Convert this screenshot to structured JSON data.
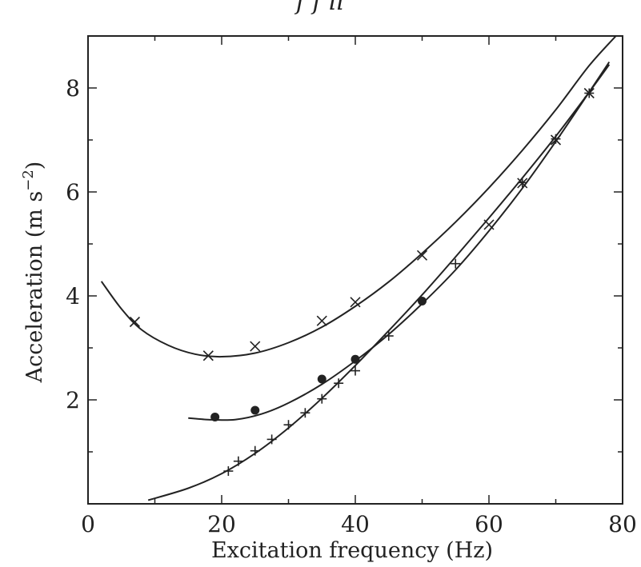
{
  "top_text": "f f ll",
  "chart_data": {
    "type": "scatter",
    "xlabel": "Excitation frequency (Hz)",
    "ylabel": "Acceleration (m s",
    "ylabel_exponent": "−2",
    "ylabel_close": ")",
    "xlim": [
      0,
      80
    ],
    "ylim": [
      0,
      9
    ],
    "x_ticks": [
      0,
      20,
      40,
      60,
      80
    ],
    "x_tick_labels": [
      "0",
      "20",
      "40",
      "60",
      "80"
    ],
    "y_ticks": [
      2,
      4,
      6,
      8
    ],
    "y_tick_labels": [
      "2",
      "4",
      "6",
      "8"
    ],
    "grid": false,
    "colors": {
      "ink": "#222222",
      "background": "#ffffff"
    },
    "series": [
      {
        "marker": "x",
        "points": [
          {
            "x": 7,
            "y": 3.5
          },
          {
            "x": 18,
            "y": 2.85
          },
          {
            "x": 25,
            "y": 3.03
          },
          {
            "x": 35,
            "y": 3.52
          },
          {
            "x": 40,
            "y": 3.88
          },
          {
            "x": 50,
            "y": 4.78
          },
          {
            "x": 60,
            "y": 5.37
          },
          {
            "x": 65,
            "y": 6.17
          },
          {
            "x": 70,
            "y": 7.0
          },
          {
            "x": 75,
            "y": 7.9
          }
        ],
        "curve": [
          {
            "x": 2,
            "y": 4.28
          },
          {
            "x": 5,
            "y": 3.75
          },
          {
            "x": 8,
            "y": 3.35
          },
          {
            "x": 12,
            "y": 3.05
          },
          {
            "x": 16,
            "y": 2.88
          },
          {
            "x": 20,
            "y": 2.83
          },
          {
            "x": 25,
            "y": 2.9
          },
          {
            "x": 30,
            "y": 3.1
          },
          {
            "x": 35,
            "y": 3.4
          },
          {
            "x": 40,
            "y": 3.8
          },
          {
            "x": 45,
            "y": 4.27
          },
          {
            "x": 50,
            "y": 4.82
          },
          {
            "x": 55,
            "y": 5.42
          },
          {
            "x": 60,
            "y": 6.08
          },
          {
            "x": 65,
            "y": 6.8
          },
          {
            "x": 70,
            "y": 7.58
          },
          {
            "x": 75,
            "y": 8.43
          },
          {
            "x": 79,
            "y": 9.0
          }
        ]
      },
      {
        "marker": "dot",
        "points": [
          {
            "x": 19,
            "y": 1.67
          },
          {
            "x": 25,
            "y": 1.8
          },
          {
            "x": 35,
            "y": 2.4
          },
          {
            "x": 40,
            "y": 2.78
          },
          {
            "x": 50,
            "y": 3.9
          }
        ],
        "curve": [
          {
            "x": 15,
            "y": 1.65
          },
          {
            "x": 18,
            "y": 1.62
          },
          {
            "x": 22,
            "y": 1.62
          },
          {
            "x": 26,
            "y": 1.73
          },
          {
            "x": 30,
            "y": 1.94
          },
          {
            "x": 35,
            "y": 2.3
          },
          {
            "x": 40,
            "y": 2.75
          },
          {
            "x": 45,
            "y": 3.26
          },
          {
            "x": 50,
            "y": 3.85
          },
          {
            "x": 55,
            "y": 4.5
          },
          {
            "x": 60,
            "y": 5.25
          },
          {
            "x": 65,
            "y": 6.07
          },
          {
            "x": 70,
            "y": 6.97
          },
          {
            "x": 75,
            "y": 7.92
          },
          {
            "x": 78,
            "y": 8.5
          }
        ]
      },
      {
        "marker": "plus",
        "points": [
          {
            "x": 21,
            "y": 0.63
          },
          {
            "x": 22.5,
            "y": 0.82
          },
          {
            "x": 25,
            "y": 1.02
          },
          {
            "x": 27.5,
            "y": 1.24
          },
          {
            "x": 30,
            "y": 1.52
          },
          {
            "x": 32.5,
            "y": 1.75
          },
          {
            "x": 35,
            "y": 2.02
          },
          {
            "x": 37.5,
            "y": 2.32
          },
          {
            "x": 40,
            "y": 2.56
          },
          {
            "x": 45,
            "y": 3.23
          },
          {
            "x": 55,
            "y": 4.62
          },
          {
            "x": 65,
            "y": 6.18
          },
          {
            "x": 70,
            "y": 7.02
          },
          {
            "x": 75,
            "y": 7.9
          }
        ],
        "curve": [
          {
            "x": 9,
            "y": 0.07
          },
          {
            "x": 15,
            "y": 0.3
          },
          {
            "x": 20,
            "y": 0.58
          },
          {
            "x": 25,
            "y": 0.97
          },
          {
            "x": 30,
            "y": 1.46
          },
          {
            "x": 35,
            "y": 2.03
          },
          {
            "x": 40,
            "y": 2.66
          },
          {
            "x": 45,
            "y": 3.33
          },
          {
            "x": 50,
            "y": 4.02
          },
          {
            "x": 55,
            "y": 4.75
          },
          {
            "x": 60,
            "y": 5.5
          },
          {
            "x": 65,
            "y": 6.27
          },
          {
            "x": 70,
            "y": 7.07
          },
          {
            "x": 75,
            "y": 7.92
          },
          {
            "x": 78,
            "y": 8.45
          }
        ]
      }
    ]
  }
}
